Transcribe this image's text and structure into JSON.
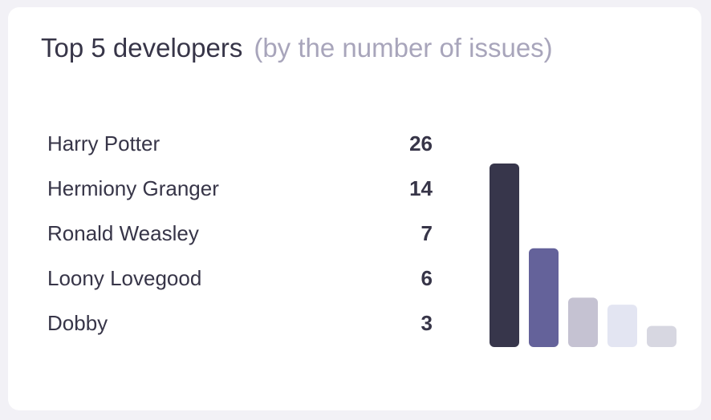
{
  "card": {
    "title": "Top 5 developers",
    "subtitle": "(by the number of issues)"
  },
  "chart_data": {
    "type": "bar",
    "categories": [
      "Harry Potter",
      "Hermiony Granger",
      "Ronald Weasley",
      "Loony Lovegood",
      "Dobby"
    ],
    "values": [
      26,
      14,
      7,
      6,
      3
    ],
    "colors": [
      "#37364b",
      "#64629a",
      "#c5c2d2",
      "#e3e5f2",
      "#d7d7e1"
    ],
    "grid": false,
    "title": "",
    "xlabel": "",
    "ylabel": ""
  }
}
